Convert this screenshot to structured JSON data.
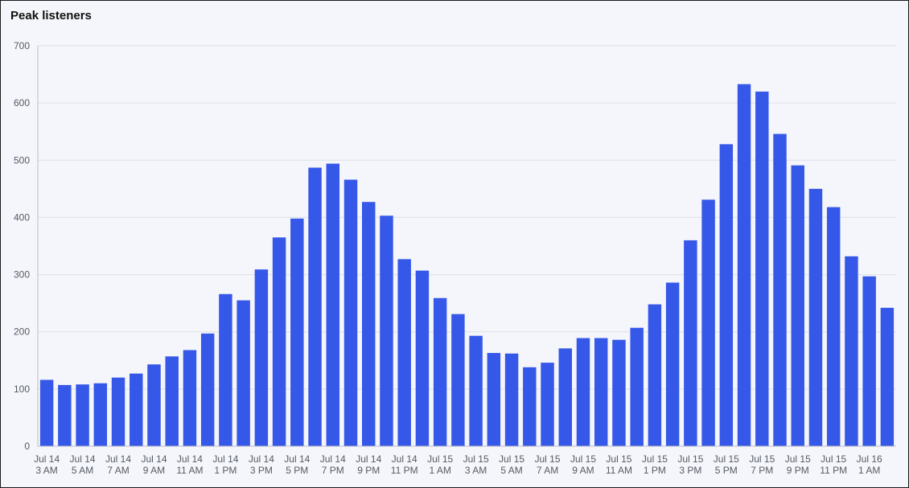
{
  "panel": {
    "title": "Peak listeners"
  },
  "colors": {
    "bar": "#3558e8",
    "grid": "#dcdfe8",
    "axis": "#b9bcc6",
    "background": "#f5f6fb"
  },
  "chart_data": {
    "type": "bar",
    "title": "Peak listeners",
    "xlabel": "",
    "ylabel": "",
    "ylim": [
      0,
      700
    ],
    "yticks": [
      0,
      100,
      200,
      300,
      400,
      500,
      600,
      700
    ],
    "grid": true,
    "categories": [
      "Jul 14 3 AM",
      "Jul 14 4 AM",
      "Jul 14 5 AM",
      "Jul 14 6 AM",
      "Jul 14 7 AM",
      "Jul 14 8 AM",
      "Jul 14 9 AM",
      "Jul 14 10 AM",
      "Jul 14 11 AM",
      "Jul 14 12 PM",
      "Jul 14 1 PM",
      "Jul 14 2 PM",
      "Jul 14 3 PM",
      "Jul 14 4 PM",
      "Jul 14 5 PM",
      "Jul 14 6 PM",
      "Jul 14 7 PM",
      "Jul 14 8 PM",
      "Jul 14 9 PM",
      "Jul 14 10 PM",
      "Jul 14 11 PM",
      "Jul 15 12 AM",
      "Jul 15 1 AM",
      "Jul 15 2 AM",
      "Jul 15 3 AM",
      "Jul 15 4 AM",
      "Jul 15 5 AM",
      "Jul 15 6 AM",
      "Jul 15 7 AM",
      "Jul 15 8 AM",
      "Jul 15 9 AM",
      "Jul 15 10 AM",
      "Jul 15 11 AM",
      "Jul 15 12 PM",
      "Jul 15 1 PM",
      "Jul 15 2 PM",
      "Jul 15 3 PM",
      "Jul 15 4 PM",
      "Jul 15 5 PM",
      "Jul 15 6 PM",
      "Jul 15 7 PM",
      "Jul 15 8 PM",
      "Jul 15 9 PM",
      "Jul 15 10 PM",
      "Jul 15 11 PM",
      "Jul 16 12 AM",
      "Jul 16 1 AM",
      "Jul 16 2 AM"
    ],
    "xtick_labels": [
      {
        "index": 0,
        "line1": "Jul 14",
        "line2": "3 AM"
      },
      {
        "index": 2,
        "line1": "Jul 14",
        "line2": "5 AM"
      },
      {
        "index": 4,
        "line1": "Jul 14",
        "line2": "7 AM"
      },
      {
        "index": 6,
        "line1": "Jul 14",
        "line2": "9 AM"
      },
      {
        "index": 8,
        "line1": "Jul 14",
        "line2": "11 AM"
      },
      {
        "index": 10,
        "line1": "Jul 14",
        "line2": "1 PM"
      },
      {
        "index": 12,
        "line1": "Jul 14",
        "line2": "3 PM"
      },
      {
        "index": 14,
        "line1": "Jul 14",
        "line2": "5 PM"
      },
      {
        "index": 16,
        "line1": "Jul 14",
        "line2": "7 PM"
      },
      {
        "index": 18,
        "line1": "Jul 14",
        "line2": "9 PM"
      },
      {
        "index": 20,
        "line1": "Jul 14",
        "line2": "11 PM"
      },
      {
        "index": 22,
        "line1": "Jul 15",
        "line2": "1 AM"
      },
      {
        "index": 24,
        "line1": "Jul 15",
        "line2": "3 AM"
      },
      {
        "index": 26,
        "line1": "Jul 15",
        "line2": "5 AM"
      },
      {
        "index": 28,
        "line1": "Jul 15",
        "line2": "7 AM"
      },
      {
        "index": 30,
        "line1": "Jul 15",
        "line2": "9 AM"
      },
      {
        "index": 32,
        "line1": "Jul 15",
        "line2": "11 AM"
      },
      {
        "index": 34,
        "line1": "Jul 15",
        "line2": "1 PM"
      },
      {
        "index": 36,
        "line1": "Jul 15",
        "line2": "3 PM"
      },
      {
        "index": 38,
        "line1": "Jul 15",
        "line2": "5 PM"
      },
      {
        "index": 40,
        "line1": "Jul 15",
        "line2": "7 PM"
      },
      {
        "index": 42,
        "line1": "Jul 15",
        "line2": "9 PM"
      },
      {
        "index": 44,
        "line1": "Jul 15",
        "line2": "11 PM"
      },
      {
        "index": 46,
        "line1": "Jul 16",
        "line2": "1 AM"
      }
    ],
    "values": [
      116,
      107,
      108,
      110,
      120,
      127,
      143,
      157,
      168,
      197,
      266,
      255,
      309,
      365,
      398,
      487,
      494,
      466,
      427,
      403,
      327,
      307,
      259,
      231,
      193,
      163,
      162,
      138,
      146,
      171,
      189,
      189,
      186,
      207,
      248,
      286,
      360,
      431,
      528,
      633,
      620,
      546,
      491,
      450,
      418,
      332,
      297,
      242
    ]
  }
}
